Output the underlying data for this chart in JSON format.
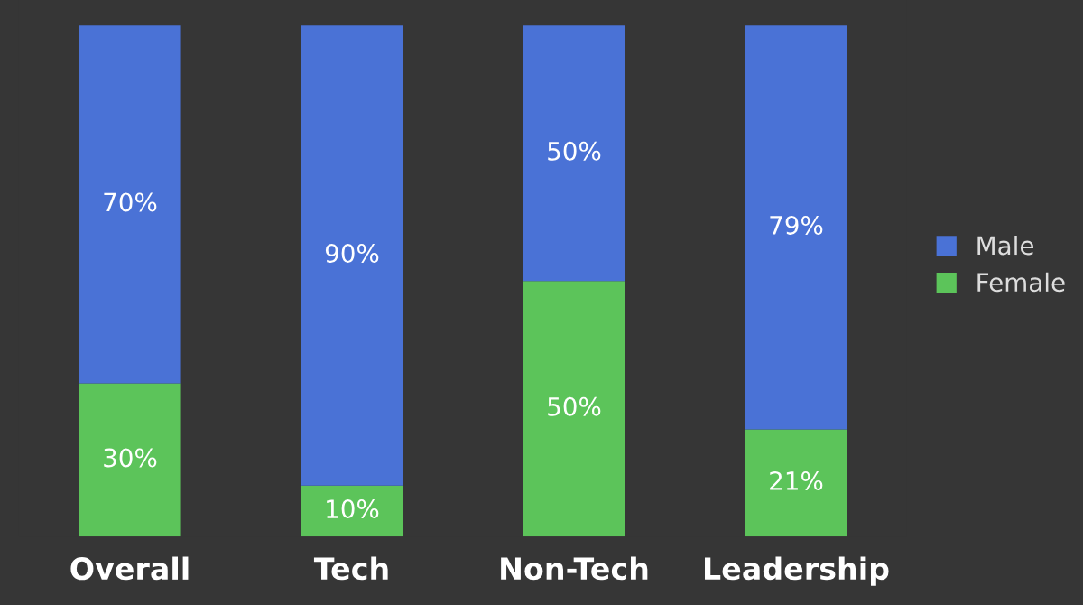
{
  "chart_data": {
    "type": "bar",
    "stacked": true,
    "legend": "right",
    "grid": false,
    "categories": [
      "Overall",
      "Tech",
      "Non-Tech",
      "Leadership"
    ],
    "series": [
      {
        "name": "Female",
        "color": "#5cc45a",
        "values": [
          30,
          10,
          50,
          21
        ],
        "value_labels": [
          "30%",
          "10%",
          "50%",
          "21%"
        ]
      },
      {
        "name": "Male",
        "color": "#4a72d6",
        "values": [
          70,
          90,
          50,
          79
        ],
        "value_labels": [
          "70%",
          "90%",
          "50%",
          "79%"
        ]
      }
    ]
  }
}
